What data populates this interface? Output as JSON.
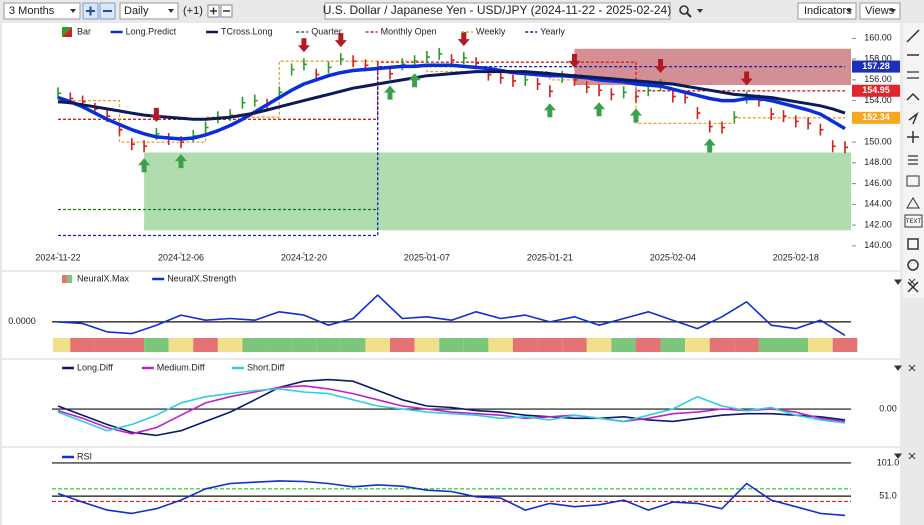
{
  "toolbar": {
    "range": "3 Months",
    "interval": "Daily",
    "offset": "(+1)",
    "symbol": "U.S. Dollar / Japanese Yen - USD/JPY (2024-11-22 - 2025-02-24)",
    "indicators": "Indicators",
    "views": "Views"
  },
  "side_toolbar": {
    "text_button": "TEXT"
  },
  "chart_data": [
    {
      "type": "ohlc",
      "categories": [
        "2024-11-22",
        null,
        null,
        null,
        null,
        null,
        null,
        null,
        null,
        null,
        "2024-12-06",
        null,
        null,
        null,
        null,
        null,
        null,
        null,
        null,
        null,
        "2024-12-20",
        null,
        null,
        null,
        null,
        null,
        null,
        null,
        null,
        null,
        "2025-01-07",
        null,
        null,
        null,
        null,
        null,
        null,
        null,
        null,
        null,
        "2025-01-21",
        null,
        null,
        null,
        null,
        null,
        null,
        null,
        null,
        null,
        "2025-02-04",
        null,
        null,
        null,
        null,
        null,
        null,
        null,
        null,
        null,
        "2025-02-18",
        null,
        null,
        null,
        null
      ],
      "bar_colors": {
        "up": "#2a9d2a",
        "down": "#d02020"
      },
      "series": [
        {
          "name": "Bar",
          "color": "#2a9d2a",
          "values": [
            154.7,
            154.2,
            153.9,
            153.2,
            152.5,
            151.2,
            149.8,
            149.6,
            150.8,
            150.3,
            150.0,
            150.6,
            151.4,
            152.4,
            152.6,
            153.8,
            154.0,
            153.6,
            154.8,
            157.0,
            157.5,
            156.5,
            157.2,
            158.0,
            157.8,
            157.4,
            157.2,
            156.6,
            157.5,
            157.8,
            158.2,
            158.5,
            157.9,
            158.1,
            157.6,
            156.5,
            156.2,
            155.9,
            156.0,
            155.6,
            154.9,
            156.3,
            156.0,
            155.3,
            155.0,
            154.6,
            154.8,
            154.4,
            155.0,
            155.5,
            154.4,
            154.3,
            152.8,
            151.5,
            151.4,
            152.4,
            154.3,
            154.0,
            152.7,
            152.5,
            152.0,
            151.8,
            151.2,
            149.6,
            149.5
          ]
        },
        {
          "name": "Long.Predict",
          "color": "#0a2fd8",
          "width": 3.5,
          "values": [
            154.3,
            153.9,
            153.4,
            152.8,
            152.2,
            151.7,
            151.2,
            150.8,
            150.5,
            150.4,
            150.3,
            150.4,
            150.7,
            151.1,
            151.6,
            152.2,
            152.9,
            153.6,
            154.3,
            155.0,
            155.6,
            156.0,
            156.4,
            156.7,
            156.9,
            157.0,
            157.1,
            157.2,
            157.3,
            157.3,
            157.4,
            157.4,
            157.4,
            157.3,
            157.2,
            157.1,
            156.9,
            156.7,
            156.6,
            156.5,
            156.4,
            156.4,
            156.3,
            156.2,
            156.0,
            155.9,
            155.8,
            155.6,
            155.5,
            155.4,
            155.1,
            154.8,
            154.5,
            154.2,
            154.0,
            154.0,
            154.2,
            154.2,
            154.0,
            153.7,
            153.4,
            153.1,
            152.7,
            152.0,
            151.3
          ]
        },
        {
          "name": "TCross.Long",
          "color": "#0a1a5c",
          "width": 3,
          "values": [
            153.9,
            153.8,
            153.6,
            153.4,
            153.2,
            153.0,
            152.8,
            152.6,
            152.5,
            152.4,
            152.3,
            152.2,
            152.2,
            152.3,
            152.4,
            152.6,
            152.8,
            153.1,
            153.4,
            153.7,
            154.0,
            154.3,
            154.6,
            154.9,
            155.2,
            155.4,
            155.6,
            155.8,
            156.0,
            156.2,
            156.4,
            156.5,
            156.6,
            156.7,
            156.8,
            156.8,
            156.8,
            156.8,
            156.8,
            156.7,
            156.6,
            156.5,
            156.4,
            156.3,
            156.2,
            156.1,
            156.0,
            155.9,
            155.8,
            155.7,
            155.6,
            155.4,
            155.2,
            155.0,
            154.8,
            154.6,
            154.5,
            154.4,
            154.3,
            154.1,
            153.9,
            153.7,
            153.5,
            153.2,
            152.8
          ]
        }
      ],
      "levels": [
        {
          "name": "Quarter",
          "color": "#1a7a1a",
          "x": [
            0,
            26
          ],
          "values": [
            143.5,
            143.5
          ]
        },
        {
          "name": "Monthly Open",
          "color": "#d02020",
          "x": [
            0,
            26,
            26,
            47,
            47,
            64
          ],
          "values": [
            152.2,
            152.2,
            157.7,
            157.7,
            154.95,
            154.95
          ]
        },
        {
          "name": "Weekly",
          "color": "#f0a030",
          "x": [
            0,
            5,
            5,
            12,
            12,
            18,
            18,
            30,
            30,
            40,
            40,
            47,
            47,
            55,
            55,
            64
          ],
          "values": [
            154.0,
            154.0,
            150.0,
            150.0,
            152.4,
            152.4,
            157.8,
            157.8,
            156.8,
            156.8,
            156.0,
            156.0,
            151.8,
            151.8,
            152.34,
            152.34
          ]
        },
        {
          "name": "Yearly",
          "color": "#1a1ab0",
          "x": [
            0,
            26,
            26,
            64
          ],
          "values": [
            141,
            141,
            157.28,
            157.28
          ]
        }
      ],
      "zones": [
        {
          "color": "#b8444e",
          "x": [
            42,
            64
          ],
          "range": [
            155.5,
            159
          ]
        },
        {
          "color": "#7cc77c",
          "x": [
            7,
            64
          ],
          "range": [
            141.5,
            149
          ]
        }
      ],
      "signals": {
        "up": [
          7,
          10,
          27,
          29,
          40,
          44,
          47,
          53
        ],
        "down": [
          8,
          20,
          23,
          33,
          42,
          49,
          56
        ],
        "up_color": "#3aa04a",
        "down_color": "#b01c22"
      },
      "price_labels": [
        {
          "value": 157.28,
          "color": "#1f2fb5"
        },
        {
          "value": 154.95,
          "color": "#e0252b"
        },
        {
          "value": 152.34,
          "color": "#f5a623"
        }
      ],
      "ylim": [
        139.6,
        161
      ],
      "yticks": [
        {
          "value": 140,
          "label": "140.00"
        },
        {
          "value": 142,
          "label": "142.00"
        },
        {
          "value": 144,
          "label": "144.00"
        },
        {
          "value": 146,
          "label": "146.00"
        },
        {
          "value": 148,
          "label": "148.00"
        },
        {
          "value": 150,
          "label": "150.00"
        },
        {
          "value": 152,
          "label": "152.00"
        },
        {
          "value": 154,
          "label": "154.00"
        },
        {
          "value": 156,
          "label": "156.00"
        },
        {
          "value": 158,
          "label": "158.00"
        },
        {
          "value": 160,
          "label": "160.00"
        }
      ]
    },
    {
      "type": "strength",
      "categories": [
        null,
        null,
        null,
        null,
        null,
        null,
        null,
        null,
        null,
        null,
        null,
        null,
        null,
        null,
        null,
        null,
        null,
        null,
        null,
        null,
        null,
        null,
        null,
        null,
        null,
        null,
        null,
        null,
        null,
        null,
        null,
        null,
        null
      ],
      "series": [
        {
          "name": "NeuralX.Max",
          "colors": [
            "#f0e08a",
            "#e57373",
            "#e57373",
            "#e57373",
            "#7cc67c",
            "#f0e08a",
            "#e57373",
            "#f0e08a",
            "#7cc67c",
            "#7cc67c",
            "#7cc67c",
            "#7cc67c",
            "#7cc67c",
            "#f0e08a",
            "#e57373",
            "#f0e08a",
            "#7cc67c",
            "#7cc67c",
            "#f0e08a",
            "#e57373",
            "#e57373",
            "#e57373",
            "#f0e08a",
            "#7cc67c",
            "#e57373",
            "#7cc67c",
            "#f0e08a",
            "#e57373",
            "#e57373",
            "#7cc67c",
            "#7cc67c",
            "#f0e08a",
            "#e57373"
          ]
        },
        {
          "name": "NeuralX.Strength",
          "color": "#1030d0",
          "values": [
            0,
            -0.05,
            -0.3,
            -0.35,
            -0.1,
            0.2,
            0.05,
            0.1,
            0.05,
            0.3,
            0.2,
            -0.1,
            0.1,
            0.8,
            0.1,
            0.15,
            0.05,
            0.3,
            0.1,
            0.2,
            0.0,
            0.15,
            -0.1,
            0.1,
            0.3,
            0.05,
            -0.2,
            0.15,
            0.6,
            -0.1,
            -0.2,
            0.05,
            -0.4
          ]
        }
      ],
      "ylim": [
        -0.9,
        1.1
      ],
      "yticks": [
        {
          "value": 0,
          "label": "0.0000"
        }
      ]
    },
    {
      "type": "line",
      "categories": [
        null,
        null,
        null,
        null,
        null,
        null,
        null,
        null,
        null,
        null,
        null,
        null,
        null,
        null,
        null,
        null,
        null,
        null,
        null,
        null,
        null,
        null,
        null,
        null,
        null,
        null,
        null,
        null,
        null,
        null,
        null,
        null,
        null
      ],
      "series": [
        {
          "name": "Long.Diff",
          "color": "#0a1a6c",
          "values": [
            0.1,
            -0.2,
            -0.5,
            -0.75,
            -0.85,
            -0.7,
            -0.4,
            -0.1,
            0.3,
            0.7,
            0.9,
            0.95,
            0.9,
            0.6,
            0.3,
            0.1,
            0.05,
            -0.05,
            -0.1,
            -0.2,
            -0.25,
            -0.3,
            -0.3,
            -0.25,
            -0.35,
            -0.4,
            -0.3,
            -0.2,
            -0.15,
            -0.15,
            -0.2,
            -0.25,
            -0.35
          ]
        },
        {
          "name": "Medium.Diff",
          "color": "#c020d0",
          "values": [
            -0.05,
            -0.3,
            -0.6,
            -0.8,
            -0.6,
            -0.2,
            0.2,
            0.4,
            0.55,
            0.7,
            0.75,
            0.65,
            0.5,
            0.3,
            0.1,
            0.0,
            -0.1,
            -0.15,
            -0.2,
            -0.3,
            -0.25,
            -0.2,
            -0.3,
            -0.4,
            -0.3,
            -0.15,
            -0.1,
            0.0,
            -0.05,
            0.0,
            -0.1,
            -0.3,
            -0.4
          ]
        },
        {
          "name": "Short.Diff",
          "color": "#30d0d8",
          "values": [
            -0.1,
            -0.4,
            -0.7,
            -0.5,
            -0.2,
            0.2,
            0.4,
            0.5,
            0.6,
            0.65,
            0.55,
            0.5,
            0.3,
            0.1,
            0.0,
            -0.1,
            -0.15,
            -0.2,
            -0.3,
            -0.25,
            -0.35,
            -0.2,
            -0.3,
            -0.4,
            -0.2,
            0.0,
            0.4,
            0.1,
            -0.05,
            0.05,
            -0.2,
            -0.35,
            -0.45
          ]
        }
      ],
      "ylim": [
        -1,
        1.1
      ],
      "yticks": [
        {
          "value": 0,
          "label": "0.00"
        }
      ]
    },
    {
      "type": "line",
      "categories": [
        null,
        null,
        null,
        null,
        null,
        null,
        null,
        null,
        null,
        null,
        null,
        null,
        null,
        null,
        null,
        null,
        null,
        null,
        null,
        null,
        null,
        null,
        null,
        null,
        null,
        null,
        null,
        null,
        null,
        null,
        null,
        null,
        null
      ],
      "series": [
        {
          "name": "RSI",
          "color": "#1030d0",
          "values": [
            55,
            42,
            30,
            25,
            32,
            45,
            62,
            70,
            72,
            74,
            73,
            70,
            65,
            68,
            66,
            60,
            58,
            50,
            48,
            30,
            40,
            35,
            38,
            45,
            30,
            42,
            40,
            32,
            70,
            45,
            35,
            25,
            22
          ]
        }
      ],
      "bands": [
        {
          "value": 62,
          "color": "#22cc22"
        },
        {
          "value": 43,
          "color": "#e02020"
        }
      ],
      "ylim": [
        12,
        113
      ],
      "yticks": [
        {
          "value": 101,
          "label": "101.0"
        },
        {
          "value": 51,
          "label": "51.0"
        }
      ]
    }
  ]
}
